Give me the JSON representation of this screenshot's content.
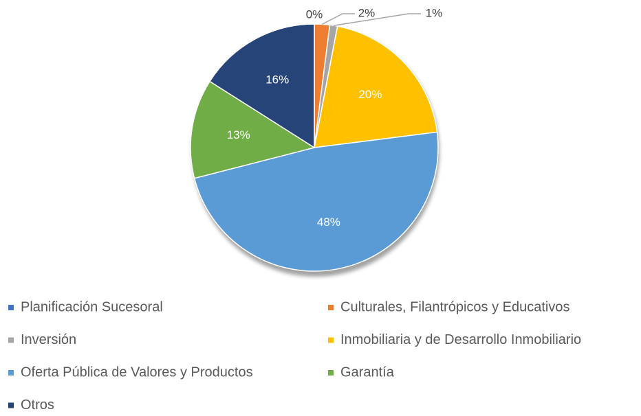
{
  "chart_data": {
    "type": "pie",
    "categories": [
      "Planificación Sucesoral",
      "Culturales, Filantrópicos y Educativos",
      "Inversión",
      "Inmobiliaria y de Desarrollo Inmobiliario",
      "Oferta Pública de Valores y Productos",
      "Garantía",
      "Otros"
    ],
    "values": [
      0,
      2,
      1,
      20,
      48,
      13,
      16
    ],
    "value_labels": [
      "0%",
      "2%",
      "1%",
      "20%",
      "48%",
      "13%",
      "16%"
    ],
    "colors": [
      "#4472c4",
      "#ed7d31",
      "#a5a5a5",
      "#ffc000",
      "#5b9bd5",
      "#70ad47",
      "#264478"
    ],
    "legend": "bottom"
  }
}
